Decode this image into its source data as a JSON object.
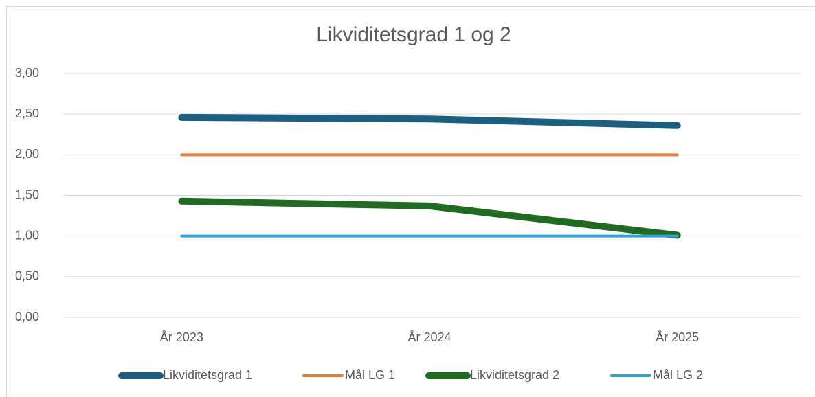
{
  "chart_data": {
    "type": "line",
    "title": "Likviditetsgrad 1 og 2",
    "categories": [
      "År 2023",
      "År 2024",
      "År 2025"
    ],
    "series": [
      {
        "name": "Likviditetsgrad 1",
        "color": "#1b5e82",
        "values": [
          2.46,
          2.44,
          2.36
        ]
      },
      {
        "name": "Mål LG 1",
        "color": "#ed7d31",
        "values": [
          2,
          2,
          2
        ]
      },
      {
        "name": "Likviditetsgrad 2",
        "color": "#1f6b22",
        "values": [
          1.43,
          1.37,
          1.01
        ]
      },
      {
        "name": "Mål LG 2",
        "color": "#2ba3d6",
        "values": [
          1,
          1,
          1
        ]
      }
    ],
    "ylim": [
      0,
      3
    ],
    "yticks": [
      {
        "value": 0,
        "label": "0,00"
      },
      {
        "value": 0.5,
        "label": "0,50"
      },
      {
        "value": 1,
        "label": "1,00"
      },
      {
        "value": 1.5,
        "label": "1,50"
      },
      {
        "value": 2,
        "label": "2,00"
      },
      {
        "value": 2.5,
        "label": "2,50"
      },
      {
        "value": 3,
        "label": "3,00"
      }
    ],
    "grid": true,
    "legend": "bottom"
  }
}
